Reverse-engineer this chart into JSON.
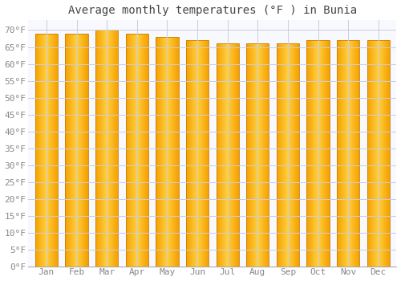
{
  "title": "Average monthly temperatures (°F ) in Bunia",
  "months": [
    "Jan",
    "Feb",
    "Mar",
    "Apr",
    "May",
    "Jun",
    "Jul",
    "Aug",
    "Sep",
    "Oct",
    "Nov",
    "Dec"
  ],
  "values": [
    69,
    69,
    70,
    69,
    68,
    67,
    66,
    66,
    66,
    67,
    67,
    67
  ],
  "ylim": [
    0,
    73
  ],
  "yticks": [
    0,
    5,
    10,
    15,
    20,
    25,
    30,
    35,
    40,
    45,
    50,
    55,
    60,
    65,
    70
  ],
  "bar_color_center": "#FFD040",
  "bar_color_edge": "#F5A000",
  "bar_outline_color": "#C88000",
  "background_color": "#FFFFFF",
  "plot_bg_color": "#F8F8FF",
  "grid_color": "#CCCCDD",
  "title_fontsize": 10,
  "tick_fontsize": 8,
  "title_color": "#444444",
  "tick_color": "#888888",
  "bar_width": 0.75
}
